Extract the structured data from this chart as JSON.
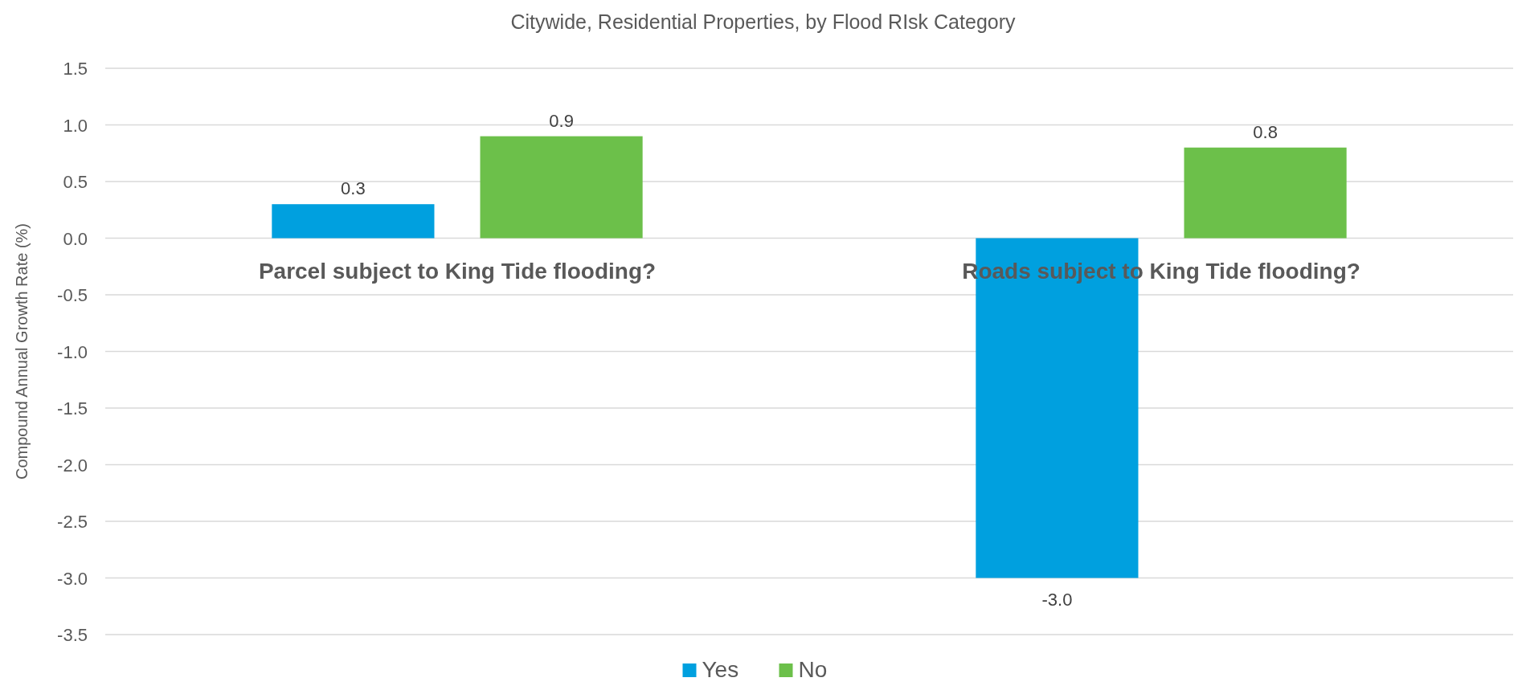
{
  "chart_data": {
    "type": "bar",
    "title": "Citywide, Residential Properties, by Flood RIsk Category",
    "ylabel": "Compound Annual Growth Rate (%)",
    "categories": [
      "Parcel subject to King Tide flooding?",
      "Roads subject to King Tide flooding?"
    ],
    "series": [
      {
        "name": "Yes",
        "color": "#00a0df",
        "values": [
          0.3,
          -3.0
        ],
        "value_labels": [
          "0.3",
          "-3.0"
        ]
      },
      {
        "name": "No",
        "color": "#6cc04a",
        "values": [
          0.9,
          0.8
        ],
        "value_labels": [
          "0.9",
          "0.8"
        ]
      }
    ],
    "ylim": [
      -3.5,
      1.5
    ],
    "yticks": [
      {
        "value": -3.5,
        "label": "-3.5"
      },
      {
        "value": -3,
        "label": "-3.0"
      },
      {
        "value": -2.5,
        "label": "-2.5"
      },
      {
        "value": -2,
        "label": "-2.0"
      },
      {
        "value": -1.5,
        "label": "-1.5"
      },
      {
        "value": -1,
        "label": "-1.0"
      },
      {
        "value": -0.5,
        "label": "-0.5"
      },
      {
        "value": 0,
        "label": "0.0"
      },
      {
        "value": 0.5,
        "label": "0.5"
      },
      {
        "value": 1,
        "label": "1.0"
      },
      {
        "value": 1.5,
        "label": "1.5"
      }
    ],
    "grid": "y",
    "legend": "bottom"
  }
}
